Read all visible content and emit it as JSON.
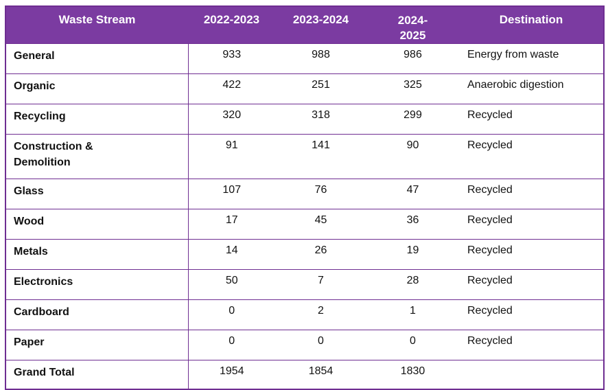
{
  "colors": {
    "header_bg": "#7B3BA1",
    "header_text": "#FFFFFF",
    "border": "#6E2D91",
    "body_text": "#111111",
    "page_bg": "#FFFFFF"
  },
  "chart_data": {
    "type": "table",
    "title": "",
    "columns": [
      "Waste Stream",
      "2022-2023",
      "2023-2024",
      "2024-2025",
      "Destination"
    ],
    "rows": [
      {
        "label": "General",
        "values": [
          933,
          988,
          986
        ],
        "destination": "Energy from waste"
      },
      {
        "label": "Organic",
        "values": [
          422,
          251,
          325
        ],
        "destination": "Anaerobic digestion"
      },
      {
        "label": "Recycling",
        "values": [
          320,
          318,
          299
        ],
        "destination": "Recycled"
      },
      {
        "label": "Construction & Demolition",
        "values": [
          91,
          141,
          90
        ],
        "destination": "Recycled"
      },
      {
        "label": "Glass",
        "values": [
          107,
          76,
          47
        ],
        "destination": "Recycled"
      },
      {
        "label": "Wood",
        "values": [
          17,
          45,
          36
        ],
        "destination": "Recycled"
      },
      {
        "label": "Metals",
        "values": [
          14,
          26,
          19
        ],
        "destination": "Recycled"
      },
      {
        "label": "Electronics",
        "values": [
          50,
          7,
          28
        ],
        "destination": "Recycled"
      },
      {
        "label": "Cardboard",
        "values": [
          0,
          2,
          1
        ],
        "destination": "Recycled"
      },
      {
        "label": "Paper",
        "values": [
          0,
          0,
          0
        ],
        "destination": "Recycled"
      },
      {
        "label": "Grand Total",
        "values": [
          1954,
          1854,
          1830
        ],
        "destination": ""
      }
    ]
  }
}
